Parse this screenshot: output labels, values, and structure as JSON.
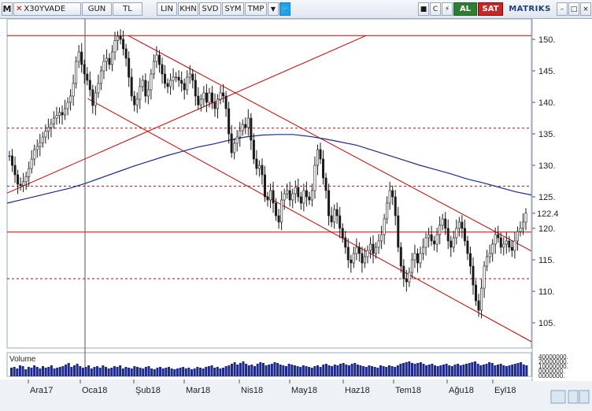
{
  "toolbar": {
    "logo": "M",
    "symbol": "X30YVADE",
    "buttons": [
      "GUN",
      "TL",
      "LIN",
      "KHN",
      "SVD",
      "SYM",
      "TMP"
    ],
    "dropdown_icon": "chevron-down-icon",
    "social_icon": "twitter-icon",
    "right_buttons": {
      "sq1": "■",
      "refresh": "C",
      "bolt": "⚡"
    },
    "buy_label": "AL",
    "sell_label": "SAT",
    "brand": "MATRIKS",
    "window_controls": [
      "–",
      "□",
      "×"
    ]
  },
  "colors": {
    "candles": "#1a1a1a",
    "trend_lines": "#cc0000",
    "moving_average": "#1e2a8a",
    "volume_bars": "#1e2a8a",
    "grid": "#cc0000"
  },
  "chart_data": {
    "type": "candlestick",
    "y_ticks": [
      "150.",
      "145.",
      "140.",
      "135.",
      "130.",
      "125.",
      "120.",
      "115.",
      "110.",
      "105."
    ],
    "y_range": [
      101,
      153
    ],
    "last_price_label": "122.4",
    "x_labels": [
      "Ara17",
      "Oca18",
      "Şub18",
      "Mar18",
      "Nis18",
      "May18",
      "Haz18",
      "Tem18",
      "Ağu18",
      "Eyl18"
    ],
    "horizontal_levels": [
      {
        "value": 150.6,
        "style": "solid"
      },
      {
        "value": 135.9,
        "style": "dashed"
      },
      {
        "value": 126.7,
        "style": "dashed"
      },
      {
        "value": 119.4,
        "style": "solid"
      },
      {
        "value": 112.0,
        "style": "dashed"
      }
    ],
    "trend_lines": [
      {
        "from": {
          "day": 0,
          "value": 125.6
        },
        "to": {
          "day": 178,
          "value": 150.6
        }
      },
      {
        "from": {
          "day": 60,
          "value": 150.6
        },
        "to": {
          "day": 260,
          "value": 116.4
        }
      },
      {
        "from": {
          "day": 40,
          "value": 140.6
        },
        "to": {
          "day": 260,
          "value": 102.0
        }
      }
    ],
    "moving_average_label": "",
    "close_series": [
      131.5,
      130.0,
      128.5,
      127.0,
      126.8,
      127.4,
      128.2,
      129.5,
      131.0,
      132.5,
      133.0,
      133.6,
      134.5,
      135.4,
      136.0,
      136.6,
      137.5,
      137.9,
      138.4,
      138.0,
      139.0,
      140.0,
      141.0,
      143.0,
      146.5,
      148.0,
      146.0,
      144.5,
      143.5,
      142.0,
      139.5,
      141.5,
      143.0,
      145.0,
      146.5,
      147.0,
      146.0,
      148.0,
      149.8,
      150.5,
      150.0,
      148.5,
      147.0,
      144.0,
      141.0,
      139.6,
      140.5,
      142.5,
      143.5,
      141.0,
      142.0,
      144.5,
      146.5,
      147.5,
      146.0,
      144.5,
      143.0,
      142.5,
      143.5,
      144.0,
      144.0,
      143.5,
      143.0,
      142.0,
      144.0,
      144.5,
      143.5,
      141.0,
      139.6,
      140.5,
      141.5,
      140.0,
      141.5,
      140.0,
      139.0,
      140.5,
      141.5,
      141.0,
      139.0,
      135.0,
      132.0,
      133.5,
      134.5,
      135.5,
      136.5,
      136.0,
      137.5,
      134.0,
      131.0,
      129.5,
      130.0,
      128.5,
      125.0,
      124.5,
      126.0,
      124.0,
      122.0,
      121.0,
      124.5,
      125.5,
      126.0,
      124.5,
      125.5,
      126.5,
      125.0,
      124.0,
      126.0,
      125.0,
      124.5,
      126.0,
      130.0,
      132.5,
      131.0,
      128.0,
      126.0,
      122.0,
      121.0,
      123.0,
      122.0,
      120.0,
      118.5,
      117.0,
      115.0,
      114.5,
      116.0,
      117.0,
      116.0,
      114.5,
      115.5,
      116.5,
      117.5,
      116.0,
      117.0,
      118.0,
      119.0,
      121.5,
      124.0,
      126.0,
      125.0,
      122.0,
      117.0,
      114.0,
      112.0,
      111.5,
      113.0,
      115.0,
      116.0,
      114.5,
      116.0,
      117.0,
      118.5,
      119.0,
      118.0,
      117.5,
      119.0,
      120.5,
      121.5,
      120.0,
      118.0,
      117.0,
      118.5,
      120.0,
      121.0,
      120.0,
      118.0,
      116.0,
      114.0,
      111.0,
      108.5,
      107.0,
      110.5,
      114.0,
      115.5,
      116.0,
      117.5,
      119.0,
      118.5,
      117.0,
      117.5,
      118.0,
      117.0,
      116.5,
      118.0,
      119.5,
      120.0,
      121.0,
      122.4
    ],
    "ma_series": [
      124.0,
      124.6,
      125.2,
      125.8,
      126.4,
      127.2,
      128.1,
      129.0,
      129.9,
      130.7,
      131.5,
      132.2,
      132.9,
      133.4,
      134.0,
      134.5,
      134.8,
      134.9,
      134.9,
      134.6,
      134.2,
      133.7,
      133.2,
      132.4,
      131.6,
      130.8,
      130.0,
      129.3,
      128.6,
      127.8,
      127.2,
      126.5,
      125.8,
      125.3
    ],
    "volume_series": [
      0.55,
      0.6,
      0.5,
      0.7,
      0.65,
      0.45,
      0.6,
      0.55,
      0.7,
      0.6,
      0.5,
      0.65,
      0.55,
      0.6,
      0.7,
      0.5,
      0.55,
      0.6,
      0.65,
      0.75,
      0.85,
      0.6,
      0.7,
      0.8,
      0.65,
      0.55,
      0.6,
      0.7,
      0.5,
      0.6,
      0.65,
      0.55,
      0.7,
      0.6,
      0.5,
      0.55,
      0.65,
      0.6,
      0.7,
      0.5,
      0.6,
      0.55,
      0.5,
      0.65,
      0.6,
      0.55,
      0.5,
      0.6,
      0.65,
      0.5,
      0.45,
      0.55,
      0.6,
      0.5,
      0.55,
      0.6,
      0.5,
      0.45,
      0.5,
      0.55,
      0.6,
      0.5,
      0.55,
      0.45,
      0.5,
      0.6,
      0.55,
      0.5,
      0.6,
      0.65,
      0.7,
      0.55,
      0.6,
      0.5,
      0.55,
      0.65,
      0.7,
      0.8,
      0.9,
      0.75,
      0.85,
      0.95,
      0.8,
      0.7,
      0.75,
      0.65,
      0.8,
      0.9,
      0.85,
      0.7,
      0.75,
      0.8,
      0.9,
      0.85,
      0.75,
      0.7,
      0.65,
      0.8,
      0.75,
      0.7,
      0.65,
      0.6,
      0.7,
      0.65,
      0.6,
      0.55,
      0.65,
      0.7,
      0.6,
      0.75,
      0.8,
      0.7,
      0.65,
      0.75,
      0.7,
      0.8,
      0.85,
      0.75,
      0.7,
      0.8,
      0.85,
      0.75,
      0.7,
      0.65,
      0.6,
      0.7,
      0.65,
      0.6,
      0.55,
      0.7,
      0.65,
      0.6,
      0.7,
      0.65,
      0.6,
      0.7,
      0.8,
      0.85,
      0.9,
      0.95,
      0.85,
      0.8,
      0.85,
      0.9,
      0.8,
      0.7,
      0.75,
      0.8,
      0.7,
      0.65,
      0.7,
      0.75,
      0.8,
      0.7,
      0.65,
      0.75,
      0.8,
      0.7,
      0.75,
      0.8,
      0.85,
      0.9,
      0.95,
      0.8,
      0.7,
      0.75,
      0.8,
      0.9,
      0.85,
      0.7,
      0.75,
      0.8,
      0.7,
      0.65,
      0.7,
      0.75,
      0.8,
      0.85,
      0.9,
      0.75,
      0.7
    ],
    "volume_label": "Volume",
    "volume_ticks": [
      "40000000.",
      "20000000.",
      "10000000.",
      "0000000.",
      "0000000."
    ]
  }
}
